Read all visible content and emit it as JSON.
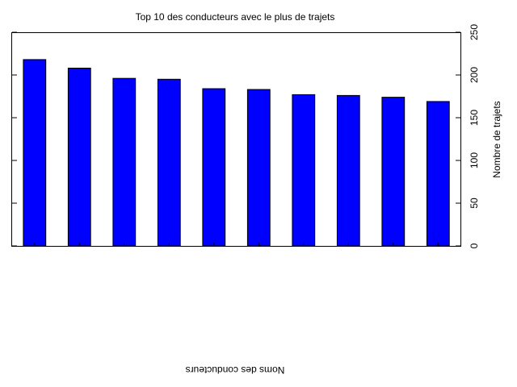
{
  "chart_data": {
    "type": "bar",
    "title": "Top 10 des conducteurs avec le plus de trajets",
    "xlabel": "Noms des conducteurs",
    "ylabel": "Nombre de trajets",
    "ylim": [
      0,
      250
    ],
    "yticks": [
      0,
      50,
      100,
      150,
      200,
      250
    ],
    "y_axis_side": "right",
    "xlabel_orientation": "upside-down",
    "grid": false,
    "legend": "none",
    "bar_color": "#0000ff",
    "values": [
      218,
      208,
      196,
      195,
      184,
      183,
      177,
      176,
      174,
      169
    ]
  }
}
